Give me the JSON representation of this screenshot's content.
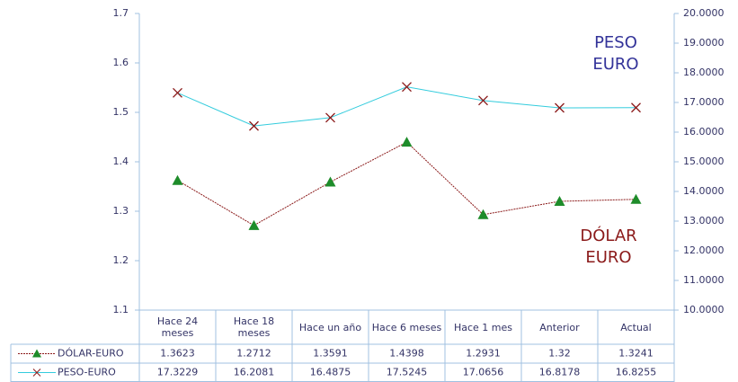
{
  "chart_data": {
    "type": "line",
    "categories": [
      "Hace 24 meses",
      "Hace 18 meses",
      "Hace un año",
      "Hace 6 meses",
      "Hace 1 mes",
      "Anterior",
      "Actual"
    ],
    "series": [
      {
        "name": "DÓLAR-EURO",
        "color": "#8b1a1a",
        "marker": "triangle",
        "marker_color": "#1e8c2a",
        "values": [
          1.3623,
          1.2712,
          1.3591,
          1.4398,
          1.2931,
          1.32,
          1.3241
        ]
      },
      {
        "name": "PESO-EURO",
        "color": "#33ccdd",
        "marker": "x",
        "marker_color": "#8b1a1a",
        "axis": "y2",
        "values": [
          17.3229,
          16.2081,
          16.4875,
          17.5245,
          17.0656,
          16.8178,
          16.8255
        ]
      }
    ],
    "ylim": [
      1.1,
      1.7
    ],
    "yticks": [
      1.1,
      1.2,
      1.3,
      1.4,
      1.5,
      1.6,
      1.7
    ],
    "y2lim": [
      10,
      20
    ],
    "y2ticks": [
      {
        "value": 10,
        "label": "10.0000"
      },
      {
        "value": 11,
        "label": "11.0000"
      },
      {
        "value": 12,
        "label": "12.0000"
      },
      {
        "value": 13,
        "label": "13.0000"
      },
      {
        "value": 14,
        "label": "14.0000"
      },
      {
        "value": 15,
        "label": "15.0000"
      },
      {
        "value": 16,
        "label": "16.0000"
      },
      {
        "value": 17,
        "label": "17.0000"
      },
      {
        "value": 18,
        "label": "18.0000"
      },
      {
        "value": 19,
        "label": "19.0000"
      },
      {
        "value": 20,
        "label": "20.0000"
      }
    ],
    "annotations": [
      {
        "lines": [
          "PESO",
          "EURO"
        ],
        "color": "#333399"
      },
      {
        "lines": [
          "DÓLAR",
          "EURO"
        ],
        "color": "#8b1a1a"
      }
    ],
    "data_table": true
  }
}
